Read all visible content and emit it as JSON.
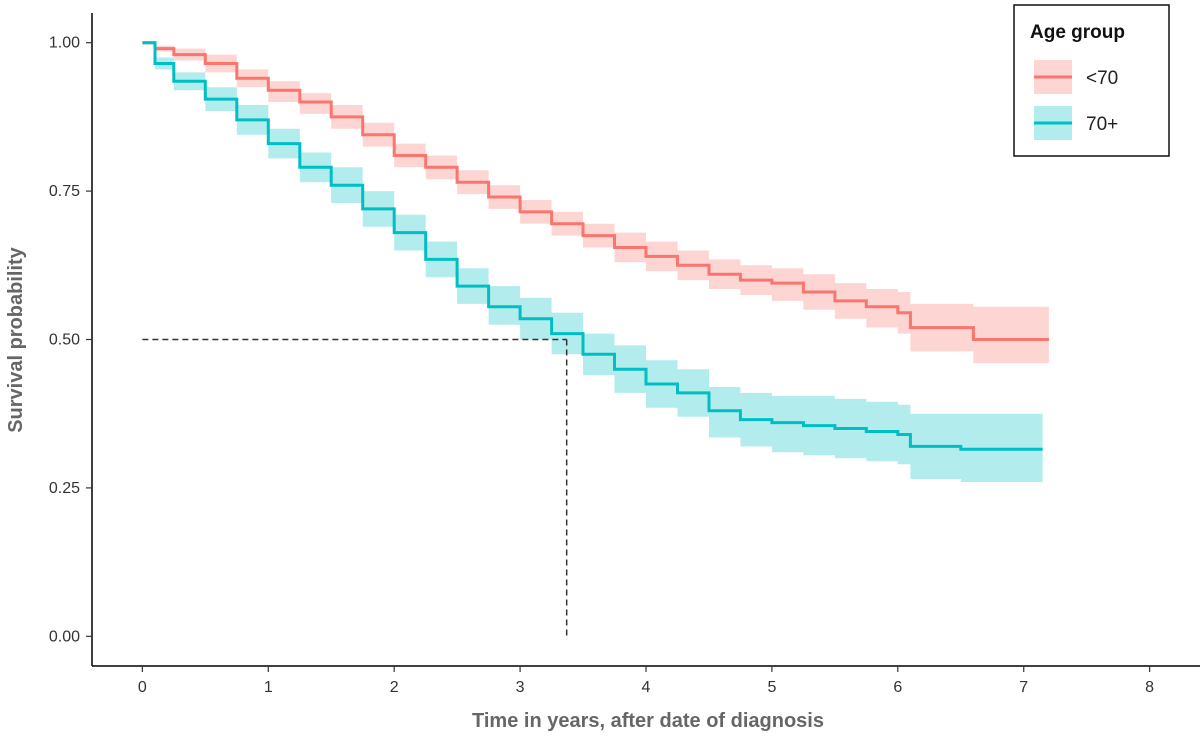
{
  "chart_data": {
    "type": "line",
    "subtype": "kaplan-meier survival curve with confidence bands",
    "title": "",
    "xlabel": "Time in years, after date of diagnosis",
    "ylabel": "Survival probability",
    "xlim": [
      -0.4,
      8.4
    ],
    "ylim": [
      -0.05,
      1.05
    ],
    "x_ticks": [
      0,
      1,
      2,
      3,
      4,
      5,
      6,
      7,
      8
    ],
    "x_tick_labels": [
      "0",
      "1",
      "2",
      "3",
      "4",
      "5",
      "6",
      "7",
      "8"
    ],
    "y_ticks": [
      0.0,
      0.25,
      0.5,
      0.75,
      1.0
    ],
    "y_tick_labels": [
      "0.00",
      "0.25",
      "0.50",
      "0.75",
      "1.00"
    ],
    "grid": false,
    "legend": {
      "title": "Age group",
      "position": "top-right",
      "entries": [
        "<70",
        "70+"
      ]
    },
    "median_reference": {
      "x": 3.37,
      "y": 0.5
    },
    "series": [
      {
        "name": "<70",
        "color": "#F8766D",
        "band_color": "#F8766D",
        "x": [
          0,
          0.1,
          0.25,
          0.5,
          0.75,
          1.0,
          1.25,
          1.5,
          1.75,
          2.0,
          2.25,
          2.5,
          2.75,
          3.0,
          3.25,
          3.5,
          3.75,
          4.0,
          4.25,
          4.5,
          4.75,
          5.0,
          5.25,
          5.5,
          5.75,
          6.0,
          6.1,
          6.5,
          6.6,
          7.2
        ],
        "y": [
          1.0,
          0.99,
          0.98,
          0.965,
          0.94,
          0.92,
          0.9,
          0.875,
          0.845,
          0.81,
          0.79,
          0.765,
          0.74,
          0.715,
          0.695,
          0.675,
          0.655,
          0.64,
          0.625,
          0.61,
          0.6,
          0.595,
          0.58,
          0.565,
          0.555,
          0.545,
          0.52,
          0.52,
          0.5,
          0.5
        ],
        "lower": [
          1.0,
          0.985,
          0.97,
          0.95,
          0.925,
          0.9,
          0.88,
          0.855,
          0.825,
          0.79,
          0.77,
          0.745,
          0.72,
          0.695,
          0.675,
          0.655,
          0.63,
          0.615,
          0.6,
          0.585,
          0.575,
          0.565,
          0.55,
          0.535,
          0.52,
          0.51,
          0.48,
          0.48,
          0.46,
          0.46
        ],
        "upper": [
          1.0,
          0.995,
          0.99,
          0.98,
          0.955,
          0.935,
          0.915,
          0.895,
          0.865,
          0.83,
          0.81,
          0.785,
          0.76,
          0.735,
          0.715,
          0.695,
          0.68,
          0.665,
          0.65,
          0.635,
          0.625,
          0.62,
          0.61,
          0.595,
          0.585,
          0.58,
          0.56,
          0.56,
          0.555,
          0.555
        ]
      },
      {
        "name": "70+",
        "color": "#00BFC4",
        "band_color": "#00BFC4",
        "x": [
          0,
          0.1,
          0.25,
          0.5,
          0.75,
          1.0,
          1.25,
          1.5,
          1.75,
          2.0,
          2.25,
          2.5,
          2.75,
          3.0,
          3.25,
          3.5,
          3.75,
          4.0,
          4.25,
          4.5,
          4.75,
          5.0,
          5.25,
          5.5,
          5.75,
          6.0,
          6.1,
          6.5,
          7.15
        ],
        "y": [
          1.0,
          0.965,
          0.935,
          0.905,
          0.87,
          0.83,
          0.79,
          0.76,
          0.72,
          0.68,
          0.635,
          0.59,
          0.555,
          0.535,
          0.51,
          0.475,
          0.45,
          0.425,
          0.41,
          0.38,
          0.365,
          0.36,
          0.355,
          0.35,
          0.345,
          0.34,
          0.32,
          0.315,
          0.315
        ],
        "lower": [
          1.0,
          0.955,
          0.92,
          0.885,
          0.845,
          0.805,
          0.765,
          0.73,
          0.69,
          0.65,
          0.605,
          0.56,
          0.525,
          0.5,
          0.475,
          0.44,
          0.41,
          0.385,
          0.37,
          0.335,
          0.32,
          0.31,
          0.305,
          0.3,
          0.295,
          0.29,
          0.265,
          0.26,
          0.26
        ],
        "upper": [
          1.0,
          0.975,
          0.95,
          0.925,
          0.895,
          0.855,
          0.815,
          0.79,
          0.75,
          0.71,
          0.665,
          0.62,
          0.59,
          0.57,
          0.545,
          0.51,
          0.49,
          0.465,
          0.45,
          0.42,
          0.41,
          0.405,
          0.405,
          0.4,
          0.395,
          0.39,
          0.375,
          0.375,
          0.375
        ]
      }
    ]
  }
}
